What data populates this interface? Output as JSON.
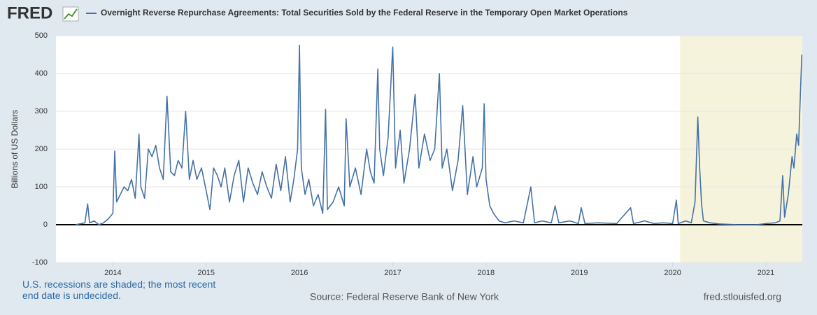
{
  "chart_data": {
    "type": "line",
    "logo": "FRED",
    "ylabel": "Billions of US Dollars",
    "note": "U.S. recessions are shaded; the most recent end date is undecided.",
    "source": "Source: Federal Reserve Bank of New York",
    "site": "fred.stlouisfed.org",
    "xlim": [
      2013.39,
      2021.39
    ],
    "xticks": [
      2014,
      2015,
      2016,
      2017,
      2018,
      2019,
      2020,
      2021
    ],
    "ylim": [
      -100,
      500
    ],
    "yticks": [
      -100,
      0,
      100,
      200,
      300,
      400,
      500
    ],
    "grid": true,
    "recessions": [
      [
        2020.08,
        2021.39
      ]
    ],
    "series": [
      {
        "name": "Overnight Reverse Repurchase Agreements: Total Securities Sold by the Federal Reserve in the Temporary Open Market Operations",
        "color": "#4572a7",
        "x": [
          2013.6,
          2013.7,
          2013.73,
          2013.75,
          2013.8,
          2013.85,
          2013.9,
          2013.95,
          2014.0,
          2014.02,
          2014.04,
          2014.08,
          2014.12,
          2014.16,
          2014.2,
          2014.24,
          2014.28,
          2014.3,
          2014.34,
          2014.38,
          2014.42,
          2014.46,
          2014.5,
          2014.54,
          2014.58,
          2014.62,
          2014.66,
          2014.7,
          2014.74,
          2014.78,
          2014.82,
          2014.86,
          2014.9,
          2014.95,
          2015.0,
          2015.04,
          2015.08,
          2015.12,
          2015.16,
          2015.2,
          2015.25,
          2015.3,
          2015.35,
          2015.4,
          2015.45,
          2015.5,
          2015.55,
          2015.6,
          2015.65,
          2015.7,
          2015.75,
          2015.8,
          2015.85,
          2015.9,
          2015.94,
          2015.98,
          2016.0,
          2016.02,
          2016.06,
          2016.1,
          2016.15,
          2016.2,
          2016.25,
          2016.28,
          2016.3,
          2016.36,
          2016.42,
          2016.48,
          2016.5,
          2016.54,
          2016.6,
          2016.66,
          2016.72,
          2016.76,
          2016.8,
          2016.84,
          2016.86,
          2016.9,
          2016.95,
          2017.0,
          2017.03,
          2017.08,
          2017.12,
          2017.18,
          2017.24,
          2017.28,
          2017.34,
          2017.4,
          2017.45,
          2017.5,
          2017.53,
          2017.58,
          2017.64,
          2017.7,
          2017.75,
          2017.8,
          2017.86,
          2017.9,
          2017.96,
          2017.98,
          2018.0,
          2018.04,
          2018.08,
          2018.14,
          2018.2,
          2018.3,
          2018.4,
          2018.48,
          2018.52,
          2018.6,
          2018.7,
          2018.74,
          2018.78,
          2018.9,
          2018.99,
          2019.02,
          2019.06,
          2019.2,
          2019.4,
          2019.55,
          2019.58,
          2019.7,
          2019.8,
          2019.9,
          2020.0,
          2020.04,
          2020.06,
          2020.14,
          2020.2,
          2020.24,
          2020.27,
          2020.29,
          2020.31,
          2020.33,
          2020.4,
          2020.5,
          2020.7,
          2020.9,
          2021.0,
          2021.1,
          2021.15,
          2021.18,
          2021.2,
          2021.24,
          2021.28,
          2021.3,
          2021.33,
          2021.35,
          2021.37,
          2021.385
        ],
        "values": [
          0,
          5,
          55,
          5,
          10,
          0,
          5,
          15,
          30,
          195,
          60,
          80,
          100,
          90,
          120,
          70,
          240,
          100,
          70,
          200,
          180,
          210,
          150,
          120,
          340,
          140,
          130,
          170,
          150,
          300,
          120,
          170,
          120,
          150,
          90,
          40,
          150,
          130,
          100,
          150,
          60,
          130,
          170,
          60,
          150,
          110,
          80,
          140,
          100,
          70,
          160,
          90,
          180,
          60,
          120,
          200,
          475,
          150,
          80,
          120,
          50,
          80,
          30,
          305,
          40,
          60,
          100,
          50,
          280,
          100,
          150,
          80,
          200,
          140,
          110,
          412,
          200,
          130,
          230,
          470,
          150,
          250,
          110,
          200,
          345,
          150,
          240,
          170,
          200,
          400,
          150,
          200,
          90,
          170,
          315,
          80,
          180,
          100,
          150,
          320,
          120,
          50,
          30,
          10,
          5,
          10,
          5,
          100,
          5,
          10,
          5,
          50,
          5,
          10,
          3,
          45,
          3,
          5,
          3,
          45,
          3,
          10,
          3,
          5,
          3,
          65,
          3,
          10,
          5,
          60,
          285,
          150,
          55,
          10,
          5,
          2,
          0,
          0,
          3,
          5,
          10,
          130,
          20,
          80,
          180,
          150,
          240,
          210,
          350,
          450
        ]
      }
    ]
  }
}
